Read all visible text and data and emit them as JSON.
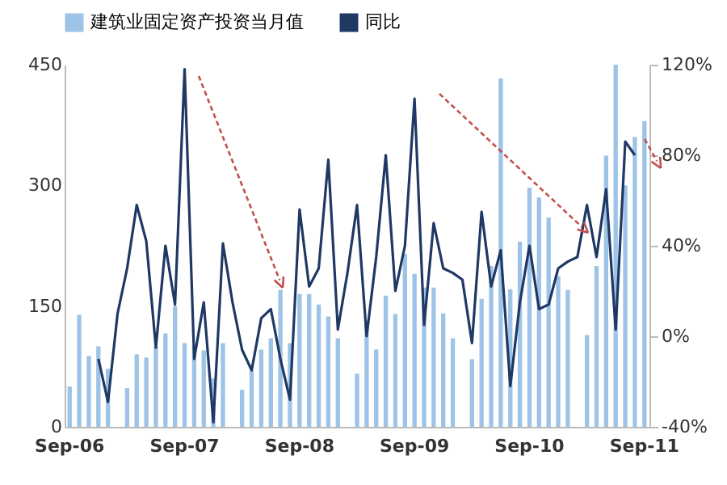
{
  "chart_data": {
    "type": "bar",
    "categories": [
      "Sep-06",
      null,
      null,
      null,
      null,
      null,
      null,
      null,
      null,
      null,
      null,
      null,
      "Sep-07",
      null,
      null,
      null,
      null,
      null,
      null,
      null,
      null,
      null,
      null,
      null,
      "Sep-08",
      null,
      null,
      null,
      null,
      null,
      null,
      null,
      null,
      null,
      null,
      null,
      "Sep-09",
      null,
      null,
      null,
      null,
      null,
      null,
      null,
      null,
      null,
      null,
      null,
      "Sep-10",
      null,
      null,
      null,
      null,
      null,
      null,
      null,
      null,
      null,
      null,
      null,
      "Sep-11"
    ],
    "series": [
      {
        "name": "建筑业固定资产投资当月值",
        "color": "#9dc3e6",
        "values": [
          50,
          139,
          88,
          100,
          72,
          null,
          48,
          90,
          86,
          100,
          116,
          150,
          104,
          100,
          95,
          60,
          104,
          null,
          46,
          70,
          96,
          110,
          170,
          104,
          165,
          165,
          152,
          137,
          110,
          null,
          66,
          132,
          96,
          163,
          140,
          215,
          190,
          173,
          173,
          141,
          110,
          null,
          84,
          159,
          200,
          433,
          171,
          230,
          297,
          285,
          260,
          187,
          170,
          null,
          114,
          200,
          337,
          450,
          300,
          360,
          380
        ]
      },
      {
        "name": "同比",
        "color": "#1f3864",
        "type": "line",
        "axis": "y2",
        "values": [
          null,
          null,
          null,
          -10,
          -29,
          10,
          30,
          58,
          42,
          -5,
          40,
          14,
          118,
          -10,
          15,
          -38,
          41,
          15,
          -6,
          -15,
          8,
          12,
          -10,
          -28,
          56,
          22,
          30,
          78,
          3,
          28,
          58,
          0,
          35,
          80,
          20,
          40,
          105,
          5,
          50,
          30,
          28,
          25,
          -3,
          55,
          22,
          38,
          -22,
          15,
          40,
          12,
          14,
          30,
          33,
          35,
          58,
          35,
          65,
          3,
          86,
          80,
          null
        ]
      }
    ],
    "ylim": [
      0,
      450
    ],
    "yticks": [
      0,
      150,
      300,
      450
    ],
    "y2lim": [
      -40,
      120
    ],
    "y2ticks": [
      {
        "value": -40,
        "label": "-40%"
      },
      {
        "value": 0,
        "label": "0%"
      },
      {
        "value": 40,
        "label": "40%"
      },
      {
        "value": 80,
        "label": "80%"
      },
      {
        "value": 120,
        "label": "120%"
      }
    ],
    "legend": "top",
    "grid": false
  }
}
